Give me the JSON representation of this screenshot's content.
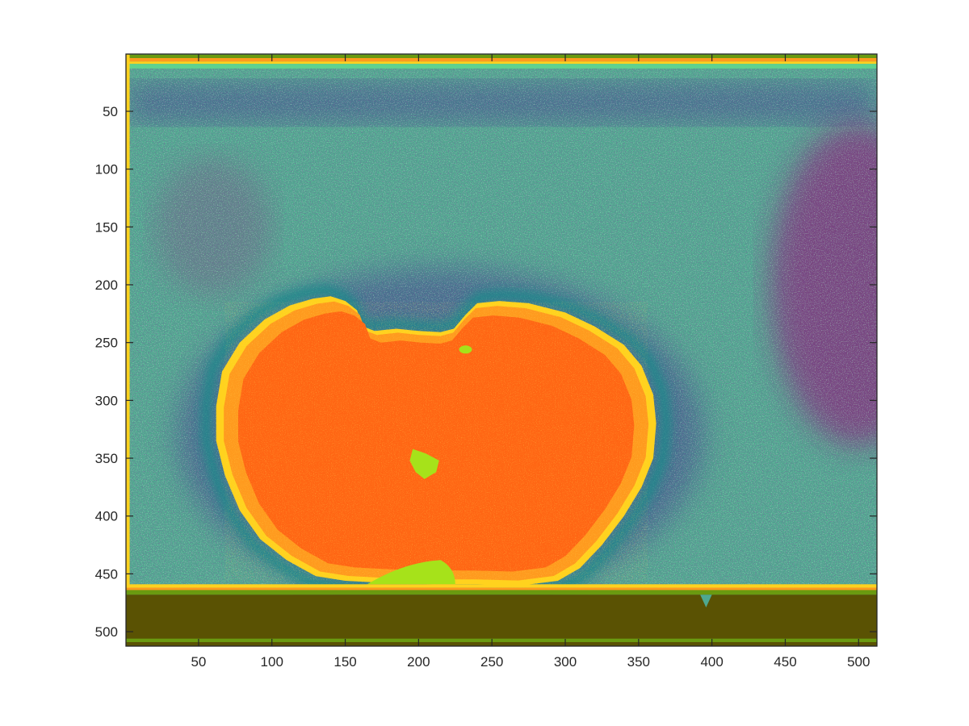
{
  "chart_data": {
    "type": "heatmap",
    "title": "",
    "xlabel": "",
    "ylabel": "",
    "xlim": [
      1,
      512
    ],
    "ylim": [
      512,
      1
    ],
    "x_ticks": [
      50,
      100,
      150,
      200,
      250,
      300,
      350,
      400,
      450,
      500
    ],
    "y_ticks": [
      50,
      100,
      150,
      200,
      250,
      300,
      350,
      400,
      450,
      500
    ],
    "x_tick_labels": [
      "50",
      "100",
      "150",
      "200",
      "250",
      "300",
      "350",
      "400",
      "450",
      "500"
    ],
    "y_tick_labels": [
      "50",
      "100",
      "150",
      "200",
      "250",
      "300",
      "350",
      "400",
      "450",
      "500"
    ],
    "y_direction": "reversed",
    "grid": false,
    "colorbar": false,
    "colormap": [
      "#4a1e6e",
      "#8a1a78",
      "#3a6e8c",
      "#1e8f8f",
      "#4fc890",
      "#5fd28f",
      "#a6e21a",
      "#ffd21e",
      "#ff9a1e",
      "#ff6614",
      "#5a5203",
      "#6a9a10"
    ],
    "regions": [
      {
        "name": "background",
        "color": "#4fa88f"
      },
      {
        "name": "upper-band",
        "color": "#3d3f8c"
      },
      {
        "name": "right-region",
        "color": "#8a1f78"
      },
      {
        "name": "halo",
        "color": "#1e8a8a"
      },
      {
        "name": "blob",
        "color": "#ff6614"
      },
      {
        "name": "blob-rim",
        "color": "#ffd21e"
      },
      {
        "name": "center-spot",
        "color": "#a6e21a"
      },
      {
        "name": "bottom-band",
        "color": "#5a5203"
      }
    ]
  }
}
